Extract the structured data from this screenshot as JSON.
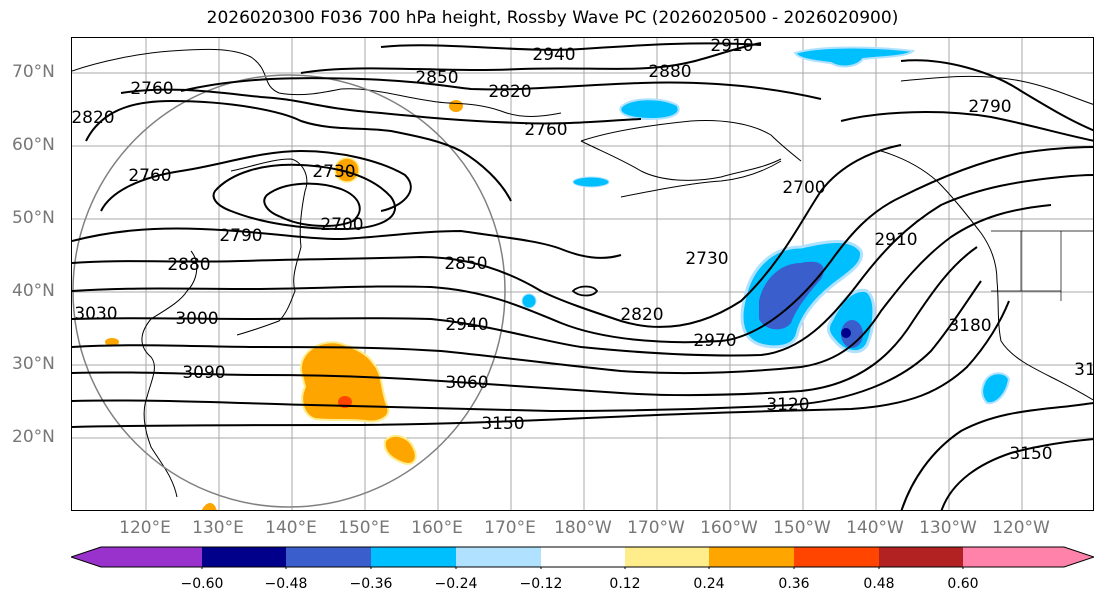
{
  "title": "2026020300 F036 700 hPa height, Rossby Wave PC (2026020500 - 2026020900)",
  "lat_labels": [
    "70°N",
    "60°N",
    "50°N",
    "40°N",
    "30°N",
    "20°N"
  ],
  "lon_labels": [
    "120°E",
    "130°E",
    "140°E",
    "150°E",
    "160°E",
    "170°E",
    "180°W",
    "170°W",
    "160°W",
    "150°W",
    "140°W",
    "130°W",
    "120°W"
  ],
  "contour_labels": [
    "2940",
    "2880",
    "2910",
    "2850",
    "2820",
    "2760",
    "2820",
    "2760",
    "2730",
    "2700",
    "2760",
    "2790",
    "2880",
    "2850",
    "2730",
    "2700",
    "2910",
    "2790",
    "3030",
    "3000",
    "2940",
    "2820",
    "2970",
    "3090",
    "3060",
    "3120",
    "3150",
    "3180",
    "3150",
    "31"
  ],
  "colorbar": {
    "ticks": [
      "−0.60",
      "−0.48",
      "−0.36",
      "−0.24",
      "−0.12",
      "0.12",
      "0.24",
      "0.36",
      "0.48",
      "0.60"
    ],
    "colors": [
      "#9932cc",
      "#00008b",
      "#3a5fcd",
      "#00bfff",
      "#b0e2ff",
      "#ffffff",
      "#ffec8b",
      "#ffa500",
      "#ff4500",
      "#b22222",
      "#ff82ab"
    ]
  }
}
